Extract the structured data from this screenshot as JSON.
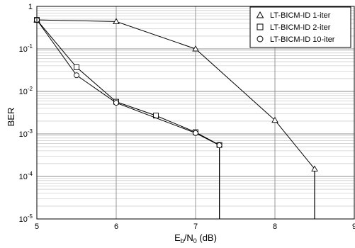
{
  "chart_data": {
    "type": "line",
    "xlabel": {
      "main": "E",
      "sub1": "b",
      "mid": "/N",
      "sub2": "0",
      "tail": " (dB)"
    },
    "ylabel": "BER",
    "xlim": [
      5,
      9
    ],
    "ylim": [
      1e-05,
      1
    ],
    "yscale": "log",
    "grid": true,
    "legend_position": "top-right",
    "x_ticks": [
      "5",
      "6",
      "7",
      "8",
      "9"
    ],
    "y_ticks": [
      {
        "value": 1,
        "base": "1",
        "exp": ""
      },
      {
        "value": 0.1,
        "base": "10",
        "exp": "-1"
      },
      {
        "value": 0.01,
        "base": "10",
        "exp": "-2"
      },
      {
        "value": 0.001,
        "base": "10",
        "exp": "-3"
      },
      {
        "value": 0.0001,
        "base": "10",
        "exp": "-4"
      },
      {
        "value": 1e-05,
        "base": "10",
        "exp": "-5"
      }
    ],
    "series": [
      {
        "name": "LT-BICM-ID 1-iter",
        "marker": "triangle",
        "x": [
          5,
          6,
          7,
          8,
          8.5
        ],
        "y": [
          0.48,
          0.44,
          0.1,
          0.0021,
          0.00015
        ]
      },
      {
        "name": "LT-BICM-ID 2-iter",
        "marker": "square",
        "x": [
          5,
          5.5,
          6,
          6.5,
          7,
          7.3
        ],
        "y": [
          0.48,
          0.037,
          0.0057,
          0.0027,
          0.0011,
          0.00055
        ]
      },
      {
        "name": "LT-BICM-ID 10-iter",
        "marker": "circle",
        "x": [
          5,
          5.5,
          6,
          7,
          7.3
        ],
        "y": [
          0.48,
          0.024,
          0.0054,
          0.00105,
          0.00054
        ]
      }
    ]
  }
}
